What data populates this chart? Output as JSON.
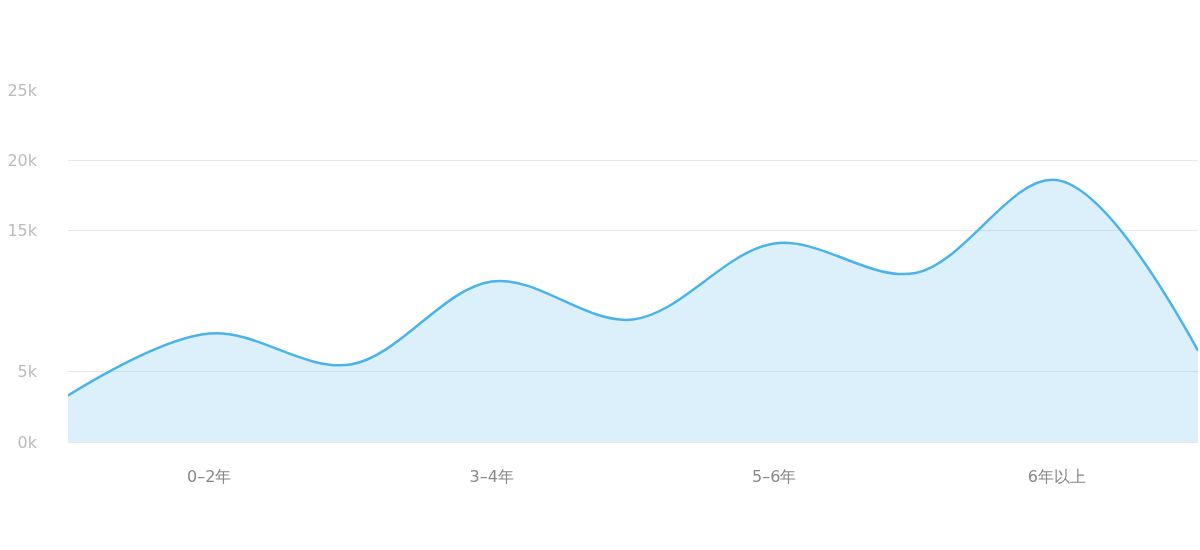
{
  "chart_data": {
    "type": "area",
    "categories": [
      null,
      "0–2年",
      null,
      "3–4年",
      null,
      "5–6年",
      null,
      "6年以上",
      null
    ],
    "series": [
      {
        "color": "#4ab3ea",
        "values": [
          3.3,
          7.7,
          5.5,
          11.4,
          8.7,
          14.1,
          12.0,
          18.6,
          6.5
        ]
      }
    ],
    "ylim": [
      0,
      25
    ],
    "yticks": [
      {
        "value": 0,
        "label": "0k"
      },
      {
        "value": 5,
        "label": "5k"
      },
      {
        "value": 15,
        "label": "15k"
      },
      {
        "value": 20,
        "label": "20k"
      },
      {
        "value": 25,
        "label": "25k"
      }
    ],
    "grid": "y",
    "marker": "none",
    "line_style": "solid"
  }
}
